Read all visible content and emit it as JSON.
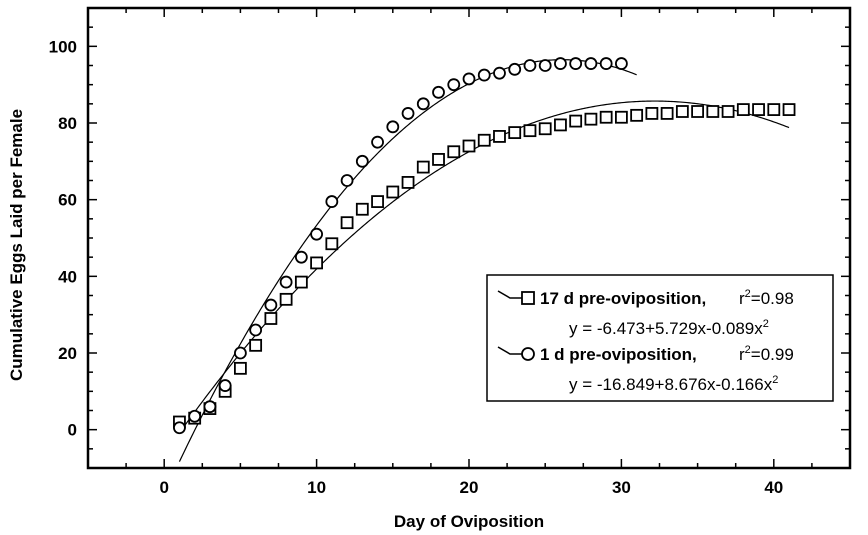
{
  "chart_data": {
    "type": "scatter",
    "xlabel": "Day of Oviposition",
    "ylabel": "Cumulative Eggs Laid per Female",
    "xlim": [
      -5,
      45
    ],
    "ylim": [
      -10,
      110
    ],
    "xticks": [
      0,
      10,
      20,
      30,
      40
    ],
    "yticks": [
      0,
      20,
      40,
      60,
      80,
      100
    ],
    "grid": false,
    "legend_position": "right-center",
    "series": [
      {
        "name": "17 d pre-oviposition,",
        "marker": "square",
        "r2_label": "r",
        "r2_sup": "2",
        "r2_value": "=0.98",
        "equation": "y = -6.473+5.729x-0.089x",
        "equation_sup": "2",
        "fit": {
          "a": -6.473,
          "b": 5.729,
          "c": -0.089,
          "x_range": [
            1,
            41
          ]
        },
        "x": [
          1,
          2,
          3,
          4,
          5,
          6,
          7,
          8,
          9,
          10,
          11,
          12,
          13,
          14,
          15,
          16,
          17,
          18,
          19,
          20,
          21,
          22,
          23,
          24,
          25,
          26,
          27,
          28,
          29,
          30,
          31,
          32,
          33,
          34,
          35,
          36,
          37,
          38,
          39,
          40,
          41
        ],
        "y": [
          2,
          3,
          5.5,
          10,
          16,
          22,
          29,
          34,
          38.5,
          43.5,
          48.5,
          54,
          57.5,
          59.5,
          62,
          64.5,
          68.5,
          70.5,
          72.5,
          74,
          75.5,
          76.5,
          77.5,
          78,
          78.5,
          79.5,
          80.5,
          81,
          81.5,
          81.5,
          82,
          82.5,
          82.5,
          83,
          83,
          83,
          83,
          83.5,
          83.5,
          83.5,
          83.5
        ]
      },
      {
        "name": "1 d pre-oviposition,",
        "marker": "circle",
        "r2_label": "r",
        "r2_sup": "2",
        "r2_value": "=0.99",
        "equation": "y = -16.849+8.676x-0.166x",
        "equation_sup": "2",
        "fit": {
          "a": -16.849,
          "b": 8.676,
          "c": -0.166,
          "x_range": [
            1,
            31
          ]
        },
        "x": [
          1,
          2,
          3,
          4,
          5,
          6,
          7,
          8,
          9,
          10,
          11,
          12,
          13,
          14,
          15,
          16,
          17,
          18,
          19,
          20,
          21,
          22,
          23,
          24,
          25,
          26,
          27,
          28,
          29,
          30
        ],
        "y": [
          0.5,
          3.5,
          6,
          11.5,
          20,
          26,
          32.5,
          38.5,
          45,
          51,
          59.5,
          65,
          70,
          75,
          79,
          82.5,
          85,
          88,
          90,
          91.5,
          92.5,
          93,
          94,
          95,
          95,
          95.5,
          95.5,
          95.5,
          95.5,
          95.5
        ]
      }
    ]
  }
}
